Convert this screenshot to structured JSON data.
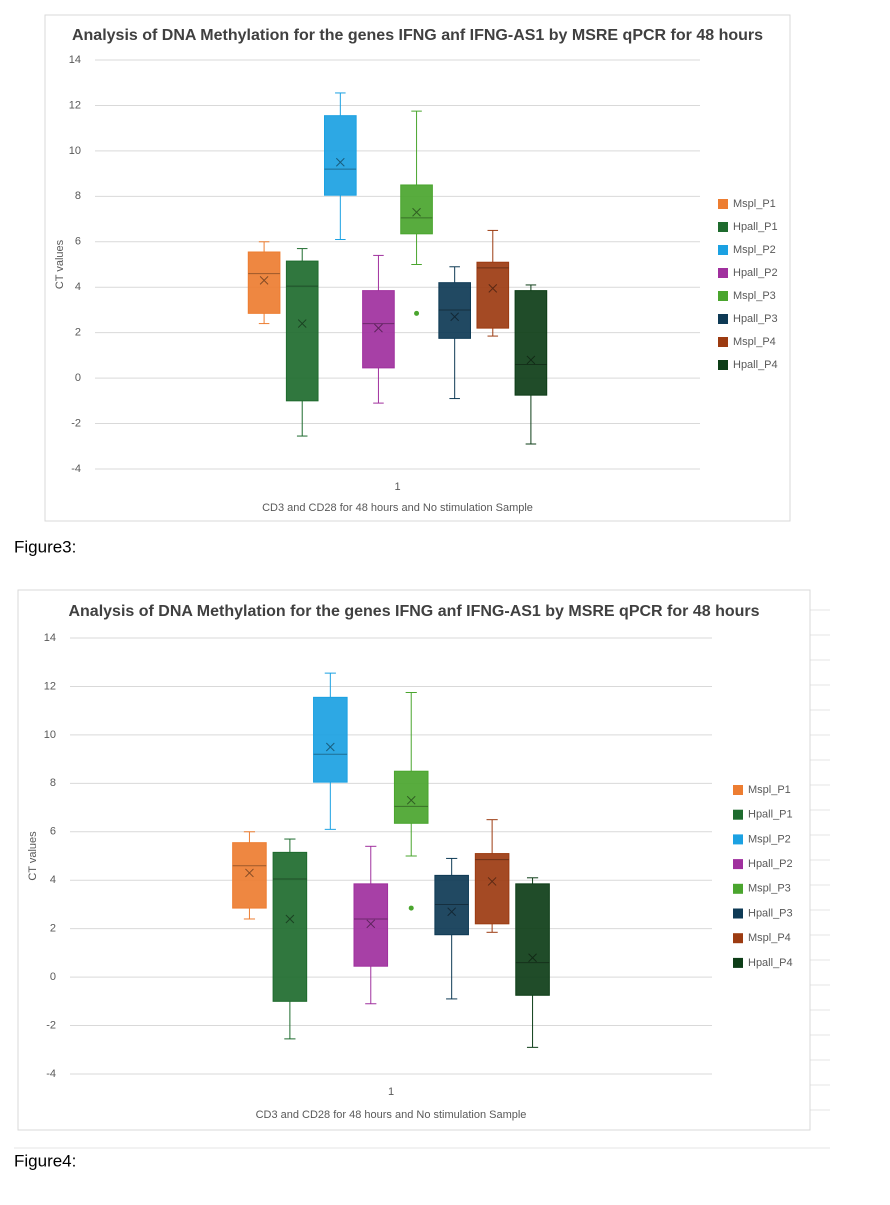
{
  "chart_data": [
    {
      "type": "box",
      "title": "Analysis of DNA Methylation for the genes IFNG anf IFNG-AS1 by MSRE qPCR for 48 hours",
      "x_label": "CD3 and CD28 for 48 hours and No stimulation Sample",
      "y_label": "CT values",
      "categories": [
        "1"
      ],
      "ylim": [
        -4,
        14
      ],
      "yticks": [
        -4,
        -2,
        0,
        2,
        4,
        6,
        8,
        10,
        12,
        14
      ],
      "grid": true,
      "legend": "right",
      "caption": "Figure3:",
      "series": [
        {
          "name": "Mspl_P1",
          "color": "#ed7d31",
          "min": 2.4,
          "q1": 2.85,
          "median": 4.6,
          "q3": 5.55,
          "max": 6.0,
          "mean": 4.3,
          "outliers": []
        },
        {
          "name": "Hpall_P1",
          "color": "#1e6b2e",
          "min": -2.55,
          "q1": -1.0,
          "median": 4.05,
          "q3": 5.15,
          "max": 5.7,
          "mean": 2.4,
          "outliers": []
        },
        {
          "name": "Mspl_P2",
          "color": "#1ba1e2",
          "min": 6.1,
          "q1": 8.05,
          "median": 9.2,
          "q3": 11.55,
          "max": 12.55,
          "mean": 9.5,
          "outliers": []
        },
        {
          "name": "Hpall_P2",
          "color": "#a0309e",
          "min": -1.1,
          "q1": 0.45,
          "median": 2.4,
          "q3": 3.85,
          "max": 5.4,
          "mean": 2.2,
          "outliers": []
        },
        {
          "name": "Mspl_P3",
          "color": "#4aa52e",
          "min": 5.0,
          "q1": 6.35,
          "median": 7.05,
          "q3": 8.5,
          "max": 11.75,
          "mean": 7.3,
          "outliers": [
            2.85
          ]
        },
        {
          "name": "Hpall_P3",
          "color": "#0e3a55",
          "min": -0.9,
          "q1": 1.75,
          "median": 3.0,
          "q3": 4.2,
          "max": 4.9,
          "mean": 2.7,
          "outliers": []
        },
        {
          "name": "Mspl_P4",
          "color": "#9c3b11",
          "min": 1.85,
          "q1": 2.2,
          "median": 4.85,
          "q3": 5.1,
          "max": 6.5,
          "mean": 3.95,
          "outliers": []
        },
        {
          "name": "Hpall_P4",
          "color": "#0d3d17",
          "min": -2.9,
          "q1": -0.75,
          "median": 0.6,
          "q3": 3.85,
          "max": 4.1,
          "mean": 0.8,
          "outliers": []
        }
      ]
    },
    {
      "type": "box",
      "title": "Analysis of DNA Methylation for the genes IFNG anf IFNG-AS1 by MSRE qPCR for 48 hours",
      "x_label": "CD3 and CD28 for 48 hours and No stimulation Sample",
      "y_label": "CT values",
      "categories": [
        "1"
      ],
      "ylim": [
        -4,
        14
      ],
      "yticks": [
        -4,
        -2,
        0,
        2,
        4,
        6,
        8,
        10,
        12,
        14
      ],
      "grid": true,
      "legend": "right",
      "caption": "Figure4:",
      "series": [
        {
          "name": "Mspl_P1",
          "color": "#ed7d31",
          "min": 2.4,
          "q1": 2.85,
          "median": 4.6,
          "q3": 5.55,
          "max": 6.0,
          "mean": 4.3,
          "outliers": []
        },
        {
          "name": "Hpall_P1",
          "color": "#1e6b2e",
          "min": -2.55,
          "q1": -1.0,
          "median": 4.05,
          "q3": 5.15,
          "max": 5.7,
          "mean": 2.4,
          "outliers": []
        },
        {
          "name": "Mspl_P2",
          "color": "#1ba1e2",
          "min": 6.1,
          "q1": 8.05,
          "median": 9.2,
          "q3": 11.55,
          "max": 12.55,
          "mean": 9.5,
          "outliers": []
        },
        {
          "name": "Hpall_P2",
          "color": "#a0309e",
          "min": -1.1,
          "q1": 0.45,
          "median": 2.4,
          "q3": 3.85,
          "max": 5.4,
          "mean": 2.2,
          "outliers": []
        },
        {
          "name": "Mspl_P3",
          "color": "#4aa52e",
          "min": 5.0,
          "q1": 6.35,
          "median": 7.05,
          "q3": 8.5,
          "max": 11.75,
          "mean": 7.3,
          "outliers": [
            2.85
          ]
        },
        {
          "name": "Hpall_P3",
          "color": "#0e3a55",
          "min": -0.9,
          "q1": 1.75,
          "median": 3.0,
          "q3": 4.2,
          "max": 4.9,
          "mean": 2.7,
          "outliers": []
        },
        {
          "name": "Mspl_P4",
          "color": "#9c3b11",
          "min": 1.85,
          "q1": 2.2,
          "median": 4.85,
          "q3": 5.1,
          "max": 6.5,
          "mean": 3.95,
          "outliers": []
        },
        {
          "name": "Hpall_P4",
          "color": "#0d3d17",
          "min": -2.9,
          "q1": -0.75,
          "median": 0.6,
          "q3": 3.85,
          "max": 4.1,
          "mean": 0.8,
          "outliers": []
        }
      ]
    }
  ]
}
